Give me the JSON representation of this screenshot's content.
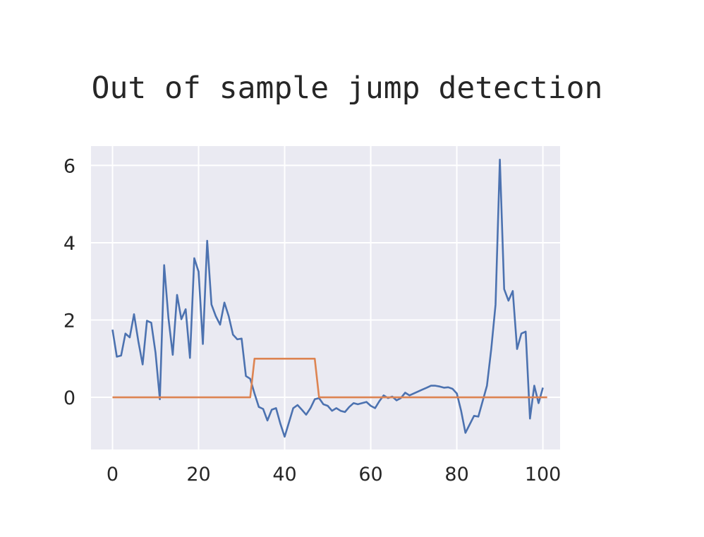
{
  "chart_data": {
    "type": "line",
    "title": "Out of sample jump detection",
    "xlabel": "",
    "ylabel": "",
    "xlim": [
      -5,
      104
    ],
    "ylim": [
      -1.35,
      6.5
    ],
    "grid": true,
    "x_ticks": [
      0,
      20,
      40,
      60,
      80,
      100
    ],
    "y_ticks": [
      0,
      2,
      4,
      6
    ],
    "series": [
      {
        "color": "#4c72b0",
        "values": [
          1.75,
          1.05,
          1.08,
          1.65,
          1.55,
          2.15,
          1.45,
          0.85,
          1.98,
          1.93,
          1.15,
          -0.05,
          3.42,
          2.05,
          1.1,
          2.65,
          2.02,
          2.28,
          1.02,
          3.6,
          3.25,
          1.38,
          4.05,
          2.4,
          2.1,
          1.88,
          2.45,
          2.1,
          1.62,
          1.5,
          1.52,
          0.55,
          0.48,
          0.1,
          -0.25,
          -0.3,
          -0.6,
          -0.32,
          -0.28,
          -0.68,
          -1.02,
          -0.65,
          -0.28,
          -0.2,
          -0.32,
          -0.45,
          -0.28,
          -0.05,
          -0.02,
          -0.18,
          -0.22,
          -0.35,
          -0.28,
          -0.35,
          -0.38,
          -0.25,
          -0.15,
          -0.18,
          -0.15,
          -0.12,
          -0.22,
          -0.28,
          -0.1,
          0.05,
          -0.02,
          0.02,
          -0.08,
          -0.02,
          0.12,
          0.05,
          0.1,
          0.15,
          0.2,
          0.25,
          0.3,
          0.3,
          0.28,
          0.25,
          0.26,
          0.22,
          0.1,
          -0.35,
          -0.92,
          -0.7,
          -0.48,
          -0.5,
          -0.1,
          0.3,
          1.25,
          2.4,
          6.15,
          2.8,
          2.5,
          2.75,
          1.25,
          1.65,
          1.7,
          -0.55,
          0.3,
          -0.15,
          0.25
        ]
      },
      {
        "color": "#dd8452",
        "values": [
          0,
          0,
          0,
          0,
          0,
          0,
          0,
          0,
          0,
          0,
          0,
          0,
          0,
          0,
          0,
          0,
          0,
          0,
          0,
          0,
          0,
          0,
          0,
          0,
          0,
          0,
          0,
          0,
          0,
          0,
          0,
          0,
          0,
          1,
          1,
          1,
          1,
          1,
          1,
          1,
          1,
          1,
          1,
          1,
          1,
          1,
          1,
          1,
          0,
          0,
          0,
          0,
          0,
          0,
          0,
          0,
          0,
          0,
          0,
          0,
          0,
          0,
          0,
          0,
          0,
          0,
          0,
          0,
          0,
          0,
          0,
          0,
          0,
          0,
          0,
          0,
          0,
          0,
          0,
          0,
          0,
          0,
          0,
          0,
          0,
          0,
          0,
          0,
          0,
          0,
          0,
          0,
          0,
          0,
          0,
          0,
          0,
          0,
          0,
          0,
          0,
          0
        ]
      }
    ]
  }
}
